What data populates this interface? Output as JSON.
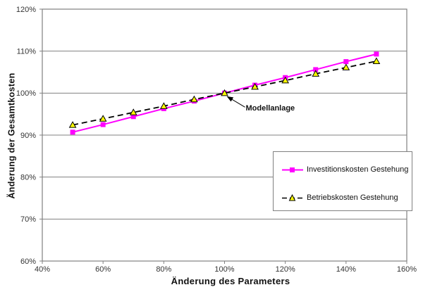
{
  "chart_data": {
    "type": "line",
    "title": "",
    "xlabel": "Änderung des Parameters",
    "ylabel": "Änderung der Gesamtkosten",
    "x": [
      50,
      60,
      70,
      80,
      90,
      100,
      110,
      120,
      130,
      140,
      150
    ],
    "series": [
      {
        "name": "Investitionskosten Gestehung",
        "color": "#FF00FF",
        "line_style": "solid",
        "marker": "square",
        "marker_fill": "#FF00FF",
        "values": [
          90.7,
          92.5,
          94.4,
          96.3,
          98.1,
          100.0,
          101.9,
          103.7,
          105.6,
          107.5,
          109.3
        ]
      },
      {
        "name": "Betriebskosten Gestehung",
        "color": "#000000",
        "line_style": "dashed",
        "marker": "triangle",
        "marker_fill": "#FFFF00",
        "values": [
          92.4,
          93.9,
          95.4,
          96.9,
          98.5,
          100.0,
          101.5,
          103.0,
          104.6,
          106.1,
          107.6
        ]
      }
    ],
    "xlim": [
      40,
      160
    ],
    "ylim": [
      60,
      120
    ],
    "x_tick_labels": [
      "40%",
      "60%",
      "80%",
      "100%",
      "120%",
      "140%",
      "160%"
    ],
    "y_tick_labels": [
      "60%",
      "70%",
      "80%",
      "90%",
      "100%",
      "110%",
      "120%"
    ],
    "grid": "horizontal",
    "legend_position": "inside-bottom-right",
    "annotation": {
      "text": "Modellanlage",
      "x": 100,
      "y": 100
    }
  },
  "colors": {
    "axis": "#808080",
    "gridline": "#808080",
    "tick_text": "#333333",
    "background": "#FFFFFF"
  }
}
